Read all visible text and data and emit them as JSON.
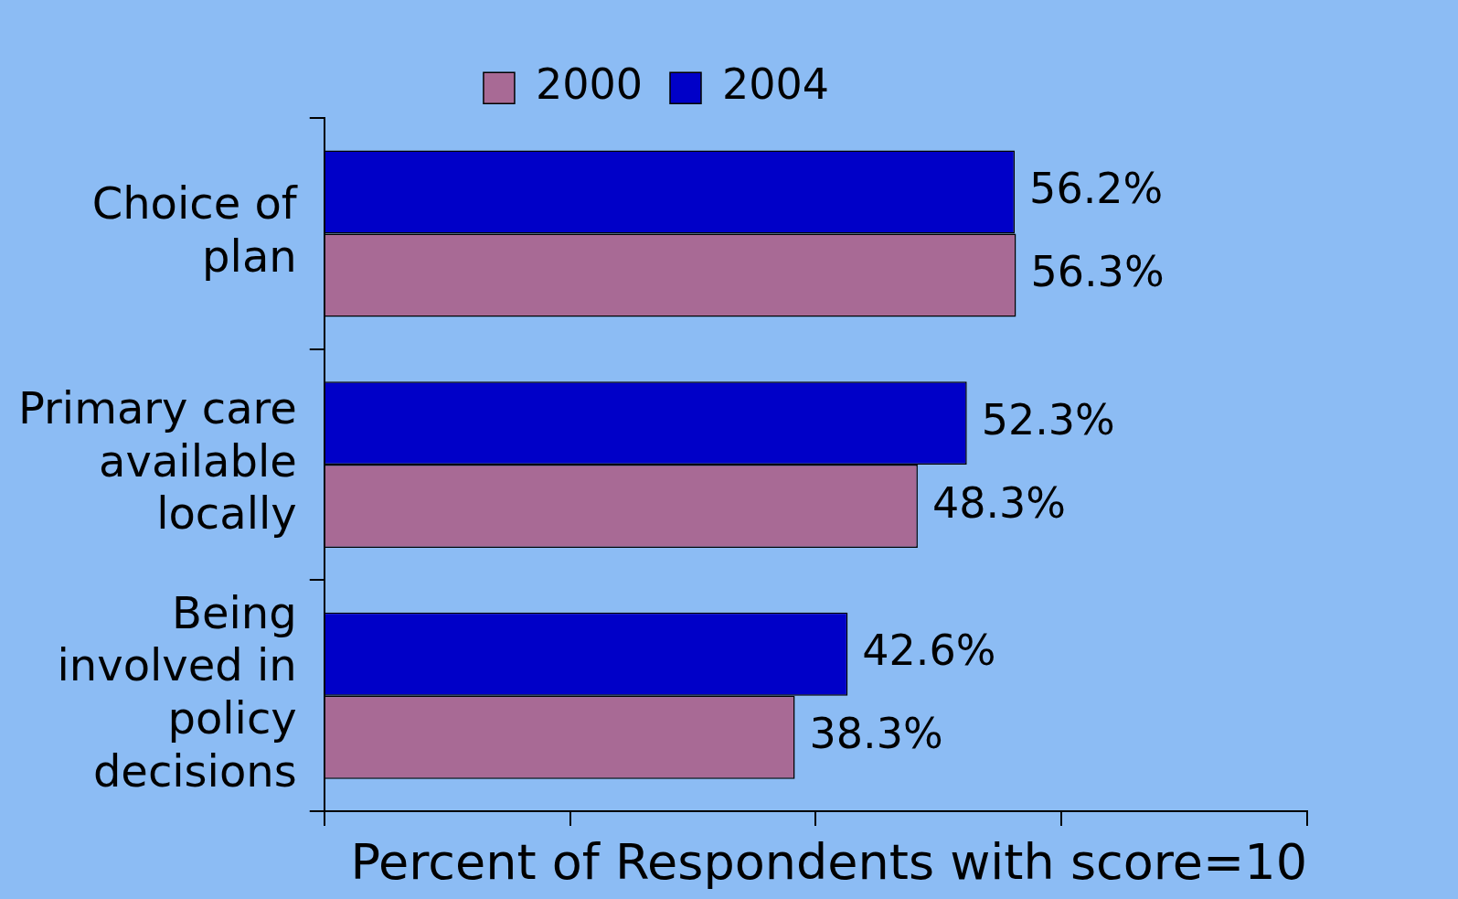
{
  "chart_data": {
    "type": "bar",
    "orientation": "horizontal",
    "xlabel": "Percent of Respondents with score=10",
    "categories": [
      "Choice of plan",
      "Primary care available locally",
      "Being involved in policy decisions"
    ],
    "series": [
      {
        "name": "2004",
        "color": "#0000c8",
        "values": [
          56.2,
          52.3,
          42.6
        ],
        "value_labels": [
          "56.2%",
          "52.3%",
          "42.6%"
        ]
      },
      {
        "name": "2000",
        "color": "#a86a95",
        "values": [
          56.3,
          48.3,
          38.3
        ],
        "value_labels": [
          "56.3%",
          "48.3%",
          "38.3%"
        ]
      }
    ],
    "xlim": [
      0,
      80
    ],
    "xticks": [
      0,
      {
        "value": 20,
        "label": null
      },
      {
        "value": 40,
        "label": null
      },
      {
        "value": 60,
        "label": null
      },
      {
        "value": 80,
        "label": null
      }
    ],
    "tick_labels": "y",
    "grid": false,
    "legend": "top"
  }
}
